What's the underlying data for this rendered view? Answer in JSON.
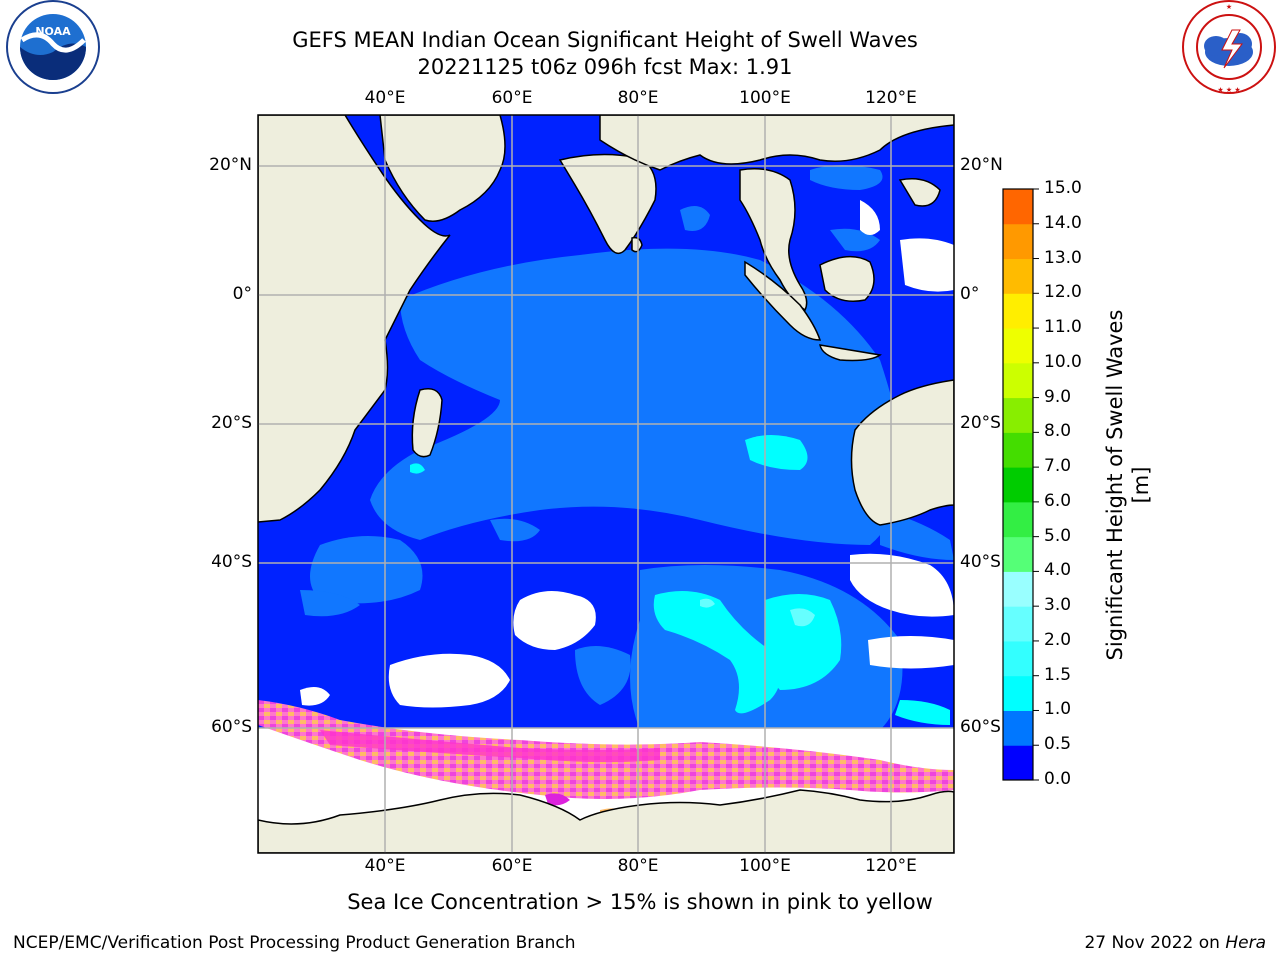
{
  "header": {
    "title_line1": "GEFS MEAN Indian Ocean Significant Height of Swell Waves",
    "title_line2": "20221125 t06z 096h fcst   Max: 1.91"
  },
  "logos": {
    "left": {
      "name": "noaa-logo",
      "text": "NOAA",
      "ring_text": "NATIONAL OCEANIC AND ATMOSPHERIC ADMINISTRATION · U.S. DEPARTMENT OF COMMERCE"
    },
    "right": {
      "name": "nws-logo",
      "ring_text": "NATIONAL WEATHER SERVICE"
    }
  },
  "map": {
    "lon_ticks_top": [
      "40°E",
      "60°E",
      "80°E",
      "100°E",
      "120°E"
    ],
    "lon_ticks_bottom": [
      "40°E",
      "60°E",
      "80°E",
      "100°E",
      "120°E"
    ],
    "lat_ticks_left": [
      "20°N",
      "0°",
      "20°S",
      "40°S",
      "60°S"
    ],
    "lat_ticks_right": [
      "20°N",
      "0°",
      "20°S",
      "40°S",
      "60°S"
    ],
    "lon_values": [
      40,
      60,
      80,
      100,
      120
    ],
    "lat_values": [
      20,
      0,
      -20,
      -40,
      -60
    ],
    "colors": {
      "land": "#eeeedd",
      "ice_free_none": "#ffffff",
      "grid": "#b0b0b0",
      "ice_pink": "#ff66cc",
      "ice_orange": "#ffbb66",
      "ice_magenta": "#dd22dd"
    }
  },
  "colorbar": {
    "label": "Significant Height of Swell Waves [m]",
    "ticks": [
      "15.0",
      "14.0",
      "13.0",
      "12.0",
      "11.0",
      "10.0",
      "9.0",
      "8.0",
      "7.0",
      "6.0",
      "5.0",
      "4.0",
      "3.0",
      "2.0",
      "1.5",
      "1.0",
      "0.5",
      "0.0"
    ],
    "colors_bottom_to_top": [
      "#0000ff",
      "#0077ff",
      "#00ffff",
      "#33ffff",
      "#66ffff",
      "#99ffff",
      "#55ff77",
      "#33ee44",
      "#00cc00",
      "#44dd00",
      "#88ee00",
      "#ccff00",
      "#eeff00",
      "#ffee00",
      "#ffbb00",
      "#ff9900",
      "#ff6600",
      "#ff3300",
      "#ff0000"
    ]
  },
  "footer": {
    "note": "Sea Ice Concentration > 15% is shown in pink to yellow",
    "credit": "NCEP/EMC/Verification Post Processing Product Generation Branch",
    "date_prefix": "27 Nov 2022 on ",
    "machine": "Hera"
  }
}
